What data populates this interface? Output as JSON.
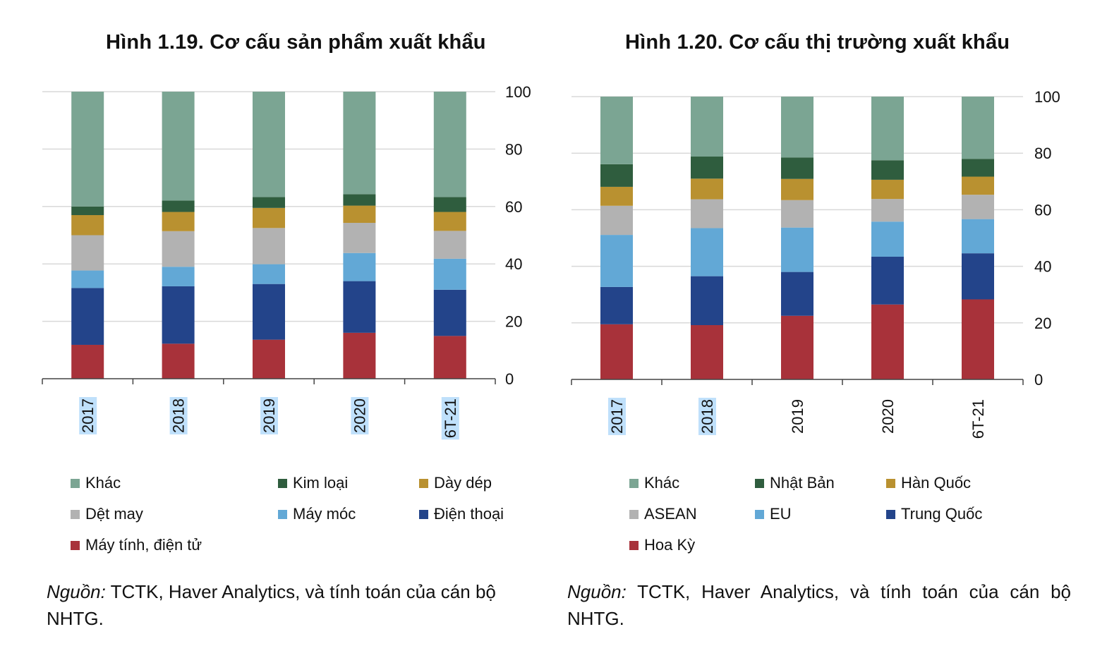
{
  "chart_data": [
    {
      "type": "bar",
      "stacked": true,
      "title": "Hình 1.19. Cơ cấu sản phẩm xuất khẩu",
      "categories": [
        "2017",
        "2018",
        "2019",
        "2020",
        "6T-21"
      ],
      "highlighted_categories": [
        "2017",
        "2018",
        "2019",
        "2020",
        "6T-21"
      ],
      "ylim": [
        0,
        100
      ],
      "yticks": [
        0,
        20,
        40,
        60,
        80,
        100
      ],
      "y_axis_side": "right",
      "grid": true,
      "legend_position": "bottom",
      "series": [
        {
          "name": "Máy tính, điện tử",
          "color": "#a8323a",
          "values": [
            11.8,
            12.2,
            13.6,
            16.0,
            14.9
          ]
        },
        {
          "name": "Điện thoại",
          "color": "#23448a",
          "values": [
            19.8,
            20.0,
            19.4,
            18.0,
            16.1
          ]
        },
        {
          "name": "Máy móc",
          "color": "#62a8d6",
          "values": [
            6.1,
            6.8,
            6.9,
            9.8,
            10.8
          ]
        },
        {
          "name": "Dệt may",
          "color": "#b2b2b2",
          "values": [
            12.3,
            12.4,
            12.6,
            10.5,
            9.7
          ]
        },
        {
          "name": "Dày dép",
          "color": "#b99130",
          "values": [
            7.0,
            6.7,
            7.0,
            6.0,
            6.6
          ]
        },
        {
          "name": "Kim loại",
          "color": "#2f5d3e",
          "values": [
            3.0,
            4.0,
            3.8,
            4.0,
            5.2
          ]
        },
        {
          "name": "Khác",
          "color": "#7ba593",
          "values": [
            40.0,
            37.9,
            36.7,
            35.7,
            36.7
          ]
        }
      ],
      "legend_order": [
        "Khác",
        "Kim loại",
        "Dày dép",
        "Dệt may",
        "Máy móc",
        "Điện thoại",
        "Máy tính, điện tử"
      ]
    },
    {
      "type": "bar",
      "stacked": true,
      "title": "Hình 1.20. Cơ cấu thị trường xuất khẩu",
      "categories": [
        "2017",
        "2018",
        "2019",
        "2020",
        "6T-21"
      ],
      "highlighted_categories": [
        "2017",
        "2018"
      ],
      "ylim": [
        0,
        100
      ],
      "yticks": [
        0,
        20,
        40,
        60,
        80,
        100
      ],
      "y_axis_side": "right",
      "grid": true,
      "legend_position": "bottom",
      "series": [
        {
          "name": "Hoa Kỳ",
          "color": "#a8323a",
          "values": [
            19.5,
            19.2,
            22.5,
            26.5,
            28.3
          ]
        },
        {
          "name": "Trung Quốc",
          "color": "#23448a",
          "values": [
            13.2,
            17.3,
            15.5,
            16.9,
            16.3
          ]
        },
        {
          "name": "EU",
          "color": "#62a8d6",
          "values": [
            18.4,
            17.0,
            15.7,
            12.4,
            12.1
          ]
        },
        {
          "name": "ASEAN",
          "color": "#b2b2b2",
          "values": [
            10.3,
            10.2,
            9.7,
            8.0,
            8.6
          ]
        },
        {
          "name": "Hàn Quốc",
          "color": "#b99130",
          "values": [
            6.7,
            7.3,
            7.5,
            6.8,
            6.4
          ]
        },
        {
          "name": "Nhật Bản",
          "color": "#2f5d3e",
          "values": [
            8.0,
            7.8,
            7.6,
            6.9,
            6.3
          ]
        },
        {
          "name": "Khác",
          "color": "#7ba593",
          "values": [
            23.9,
            21.2,
            21.5,
            22.5,
            22.0
          ]
        }
      ],
      "legend_order": [
        "Khác",
        "Nhật Bản",
        "Hàn Quốc",
        "ASEAN",
        "EU",
        "Trung Quốc",
        "Hoa Kỳ"
      ]
    }
  ],
  "left": {
    "source_label": "Nguồn:",
    "source_text": " TCTK, Haver Analytics, và tính toán của cán bộ NHTG."
  },
  "right": {
    "source_label": "Nguồn:",
    "source_text": " TCTK, Haver Analytics, và tính toán của cán bộ NHTG."
  }
}
